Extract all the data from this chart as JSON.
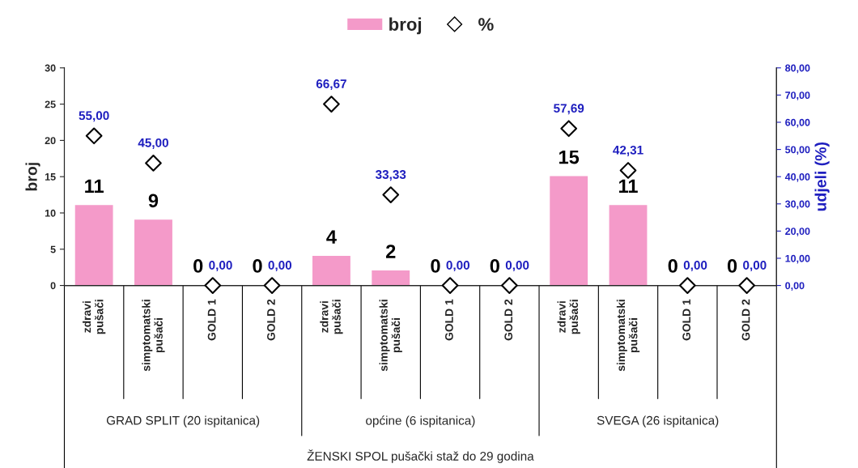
{
  "chart_data": {
    "type": "bar",
    "ylabel": "broj",
    "y2label": "udjeli (%)",
    "categories": [
      "zdravi pušači",
      "simptomatski pušači",
      "GOLD 1",
      "GOLD 2",
      "zdravi pušači",
      "simptomatski pušači",
      "GOLD 1",
      "GOLD 2",
      "zdravi pušači",
      "simptomatski pušači",
      "GOLD 1",
      "GOLD 2"
    ],
    "series": [
      {
        "name": "broj",
        "color": "#f49ac9",
        "values": [
          11,
          9,
          0,
          0,
          4,
          2,
          0,
          0,
          15,
          11,
          0,
          0
        ]
      },
      {
        "type": "scatter",
        "name": "%",
        "color": "#ffffff",
        "axis": "y2",
        "marker": "diamond",
        "values": [
          55,
          45,
          0,
          0,
          66.67,
          33.33,
          0,
          0,
          57.69,
          42.31,
          0,
          0
        ],
        "value_labels": [
          "55,00",
          "45,00",
          "0,00",
          "0,00",
          "66,67",
          "33,33",
          "0,00",
          "0,00",
          "57,69",
          "42,31",
          "0,00",
          "0,00"
        ]
      }
    ],
    "data_labels": true,
    "ylim": [
      0,
      30
    ],
    "yticks": [
      0,
      5,
      10,
      15,
      20,
      25,
      30
    ],
    "y2lim": [
      0,
      80
    ],
    "y2ticks": [
      {
        "value": 0,
        "label": "0,00"
      },
      {
        "value": 10,
        "label": "10,00"
      },
      {
        "value": 20,
        "label": "20,00"
      },
      {
        "value": 30,
        "label": "30,00"
      },
      {
        "value": 40,
        "label": "40,00"
      },
      {
        "value": 50,
        "label": "50,00"
      },
      {
        "value": 60,
        "label": "60,00"
      },
      {
        "value": 70,
        "label": "70,00"
      },
      {
        "value": 80,
        "label": "80,00"
      }
    ],
    "legend": "top",
    "grid": false,
    "annotations": [
      "GRAD SPLIT (20 ispitanica)",
      "općine (6 ispitanica)",
      "SVEGA (26 ispitanica)",
      "ŽENSKI SPOL pušački staž do 29 godina"
    ]
  }
}
